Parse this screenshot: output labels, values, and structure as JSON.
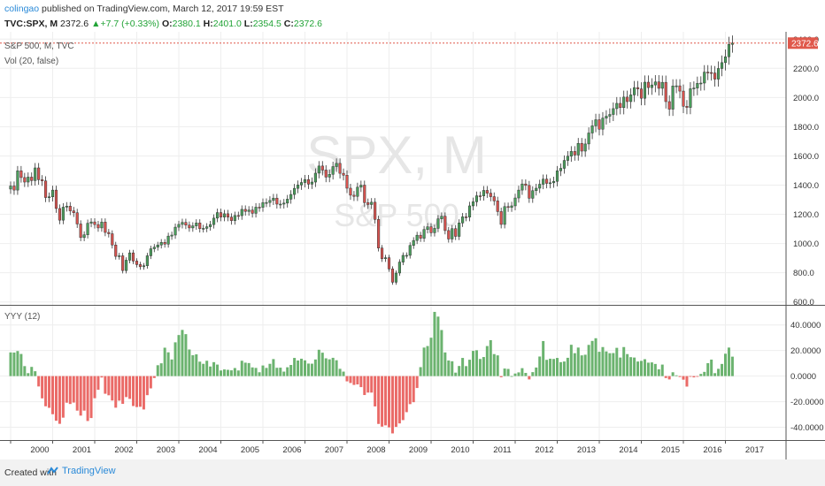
{
  "header": {
    "user": "colingao",
    "published": " published on TradingView.com, March 12, 2017 19:59 EST",
    "symbol": "TVC:SPX, M",
    "last": "2372.6",
    "change": "+7.7 (+0.33%)",
    "open_label": "O:",
    "open": "2380.1",
    "high_label": "H:",
    "high": "2401.0",
    "low_label": "L:",
    "low": "2354.5",
    "close_label": "C:",
    "close": "2372.6"
  },
  "legend": {
    "title": "S&P 500, M, TVC",
    "volume": "Vol (20, false)",
    "watermark_symbol": "SPX, M",
    "watermark_name": "S&P 500",
    "price_badge": "2372.6"
  },
  "footer": {
    "created": "Created with",
    "brand": "TradingView"
  },
  "colors": {
    "up": "#4a9e5c",
    "down": "#d9534f",
    "grid": "#eeeeee",
    "border": "#555555",
    "price_line": "#e0584b"
  },
  "chart_data": [
    {
      "type": "candlestick",
      "title": "S&P 500, M, TVC",
      "x_axis": "monthly, Jan 2000 – Mar 2017",
      "y_ticks": [
        "600.0",
        "800.0",
        "1000.0",
        "1200.0",
        "1400.0",
        "1600.0",
        "1800.0",
        "2000.0",
        "2200.0",
        "2400.0"
      ],
      "ylim": [
        580,
        2450
      ],
      "closes_by_year": {
        "2000": [
          1394,
          1366,
          1498,
          1452,
          1421,
          1455,
          1431,
          1518,
          1437,
          1429,
          1315,
          1320
        ],
        "2001": [
          1366,
          1240,
          1160,
          1249,
          1256,
          1224,
          1211,
          1134,
          1041,
          1060,
          1139,
          1148
        ],
        "2002": [
          1130,
          1107,
          1147,
          1076,
          1067,
          990,
          912,
          916,
          815,
          886,
          936,
          880
        ],
        "2003": [
          856,
          841,
          848,
          916,
          964,
          975,
          990,
          1008,
          996,
          1051,
          1058,
          1112
        ],
        "2004": [
          1131,
          1145,
          1126,
          1107,
          1121,
          1141,
          1102,
          1104,
          1115,
          1130,
          1174,
          1212
        ],
        "2005": [
          1181,
          1204,
          1181,
          1157,
          1192,
          1191,
          1234,
          1220,
          1229,
          1207,
          1249,
          1248
        ],
        "2006": [
          1280,
          1281,
          1295,
          1311,
          1270,
          1270,
          1277,
          1304,
          1336,
          1378,
          1401,
          1418
        ],
        "2007": [
          1438,
          1407,
          1421,
          1482,
          1531,
          1503,
          1455,
          1474,
          1527,
          1549,
          1481,
          1468
        ],
        "2008": [
          1379,
          1331,
          1323,
          1386,
          1400,
          1280,
          1267,
          1283,
          1165,
          969,
          896,
          903
        ],
        "2009": [
          826,
          735,
          798,
          873,
          919,
          919,
          987,
          1021,
          1057,
          1036,
          1096,
          1115
        ],
        "2010": [
          1074,
          1104,
          1169,
          1187,
          1089,
          1031,
          1102,
          1049,
          1141,
          1183,
          1181,
          1258
        ],
        "2011": [
          1286,
          1327,
          1326,
          1364,
          1345,
          1321,
          1292,
          1219,
          1131,
          1253,
          1247,
          1258
        ],
        "2012": [
          1312,
          1366,
          1408,
          1398,
          1310,
          1362,
          1379,
          1406,
          1441,
          1412,
          1416,
          1426
        ],
        "2013": [
          1498,
          1515,
          1569,
          1598,
          1631,
          1606,
          1686,
          1633,
          1682,
          1757,
          1806,
          1848
        ],
        "2014": [
          1783,
          1859,
          1872,
          1884,
          1924,
          1960,
          1931,
          2003,
          1972,
          2018,
          2068,
          2059
        ],
        "2015": [
          1995,
          2105,
          2068,
          2086,
          2107,
          2063,
          2104,
          1972,
          1920,
          2079,
          2080,
          2044
        ],
        "2016": [
          1940,
          1932,
          2060,
          2065,
          2097,
          2099,
          2174,
          2171,
          2168,
          2126,
          2199,
          2239
        ],
        "2017": [
          2279,
          2364,
          2373
        ]
      },
      "last_close": 2372.6
    },
    {
      "type": "bar",
      "title": "YYY (12)",
      "y_ticks": [
        "-40.0000",
        "-20.0000",
        "0.0000",
        "20.0000",
        "40.0000"
      ],
      "ylim": [
        -50,
        55
      ],
      "values_by_year": {
        "2000": [
          18.5,
          18.4,
          19.6,
          17.3,
          7.8,
          2.3,
          7.2,
          3.8,
          -8.1,
          -17.4,
          -23.6,
          -24.8
        ],
        "2001": [
          -29.8,
          -34.9,
          -37.3,
          -32.5,
          -20.8,
          -21.8,
          -20.7,
          -27.0,
          -30.9,
          -27.0,
          -35.1,
          -32.8
        ],
        "2002": [
          -17.3,
          -10.7,
          -1.1,
          -13.8,
          -15.0,
          -19.1,
          -24.7,
          -19.2,
          -21.7,
          -16.4,
          -17.8,
          -23.4
        ],
        "2003": [
          -24.2,
          -24.0,
          -26.1,
          -14.9,
          -9.6,
          -1.5,
          8.5,
          10.0,
          22.2,
          18.6,
          13.0,
          26.4
        ],
        "2004": [
          32.1,
          36.1,
          32.8,
          20.8,
          16.3,
          17.0,
          11.3,
          9.6,
          12.0,
          7.5,
          10.9,
          9.0
        ],
        "2005": [
          4.4,
          5.2,
          4.9,
          4.5,
          6.3,
          4.4,
          12.0,
          10.5,
          10.2,
          6.8,
          6.4,
          3.0
        ],
        "2006": [
          8.3,
          6.4,
          9.6,
          13.3,
          6.5,
          6.6,
          3.5,
          6.9,
          8.7,
          14.2,
          12.2,
          13.6
        ],
        "2007": [
          12.3,
          9.8,
          9.7,
          13.0,
          20.6,
          18.3,
          13.9,
          13.1,
          14.3,
          12.4,
          5.7,
          3.5
        ],
        "2008": [
          -4.1,
          -5.4,
          -6.9,
          -6.5,
          -8.6,
          -14.8,
          -12.9,
          -12.9,
          -23.7,
          -37.4,
          -39.5,
          -38.5
        ],
        "2009": [
          -40.1,
          -44.8,
          -39.7,
          -37.0,
          -34.4,
          -28.2,
          -21.9,
          -20.4,
          -9.3,
          7.0,
          22.3,
          23.5
        ],
        "2010": [
          30.0,
          50.2,
          46.5,
          36.0,
          18.5,
          12.2,
          11.6,
          2.7,
          7.9,
          14.2,
          7.8,
          12.8
        ],
        "2011": [
          19.7,
          20.2,
          13.4,
          14.9,
          23.5,
          28.1,
          17.2,
          16.2,
          -0.9,
          5.9,
          5.6,
          0.0
        ],
        "2012": [
          2.0,
          2.9,
          6.2,
          2.5,
          -2.6,
          3.1,
          6.7,
          15.3,
          27.4,
          12.7,
          13.6,
          13.4
        ],
        "2013": [
          14.2,
          10.9,
          11.4,
          14.3,
          24.5,
          17.9,
          22.3,
          16.2,
          16.7,
          24.4,
          27.5,
          29.6
        ],
        "2014": [
          19.0,
          22.7,
          19.3,
          17.9,
          18.0,
          22.1,
          14.5,
          22.7,
          17.2,
          14.8,
          14.5,
          11.4
        ],
        "2015": [
          11.9,
          13.2,
          10.5,
          10.7,
          9.5,
          5.3,
          9.0,
          -1.5,
          -2.6,
          3.0,
          0.6,
          -0.7
        ],
        "2016": [
          -2.8,
          -8.2,
          -0.4,
          -1.0,
          -0.5,
          1.7,
          3.3,
          10.1,
          12.9,
          2.3,
          5.7,
          9.5
        ],
        "2017": [
          17.5,
          22.3,
          15.2
        ]
      }
    }
  ],
  "x_axis_years": [
    "2000",
    "2001",
    "2002",
    "2003",
    "2004",
    "2005",
    "2006",
    "2007",
    "2008",
    "2009",
    "2010",
    "2011",
    "2012",
    "2013",
    "2014",
    "2015",
    "2016",
    "2017"
  ]
}
